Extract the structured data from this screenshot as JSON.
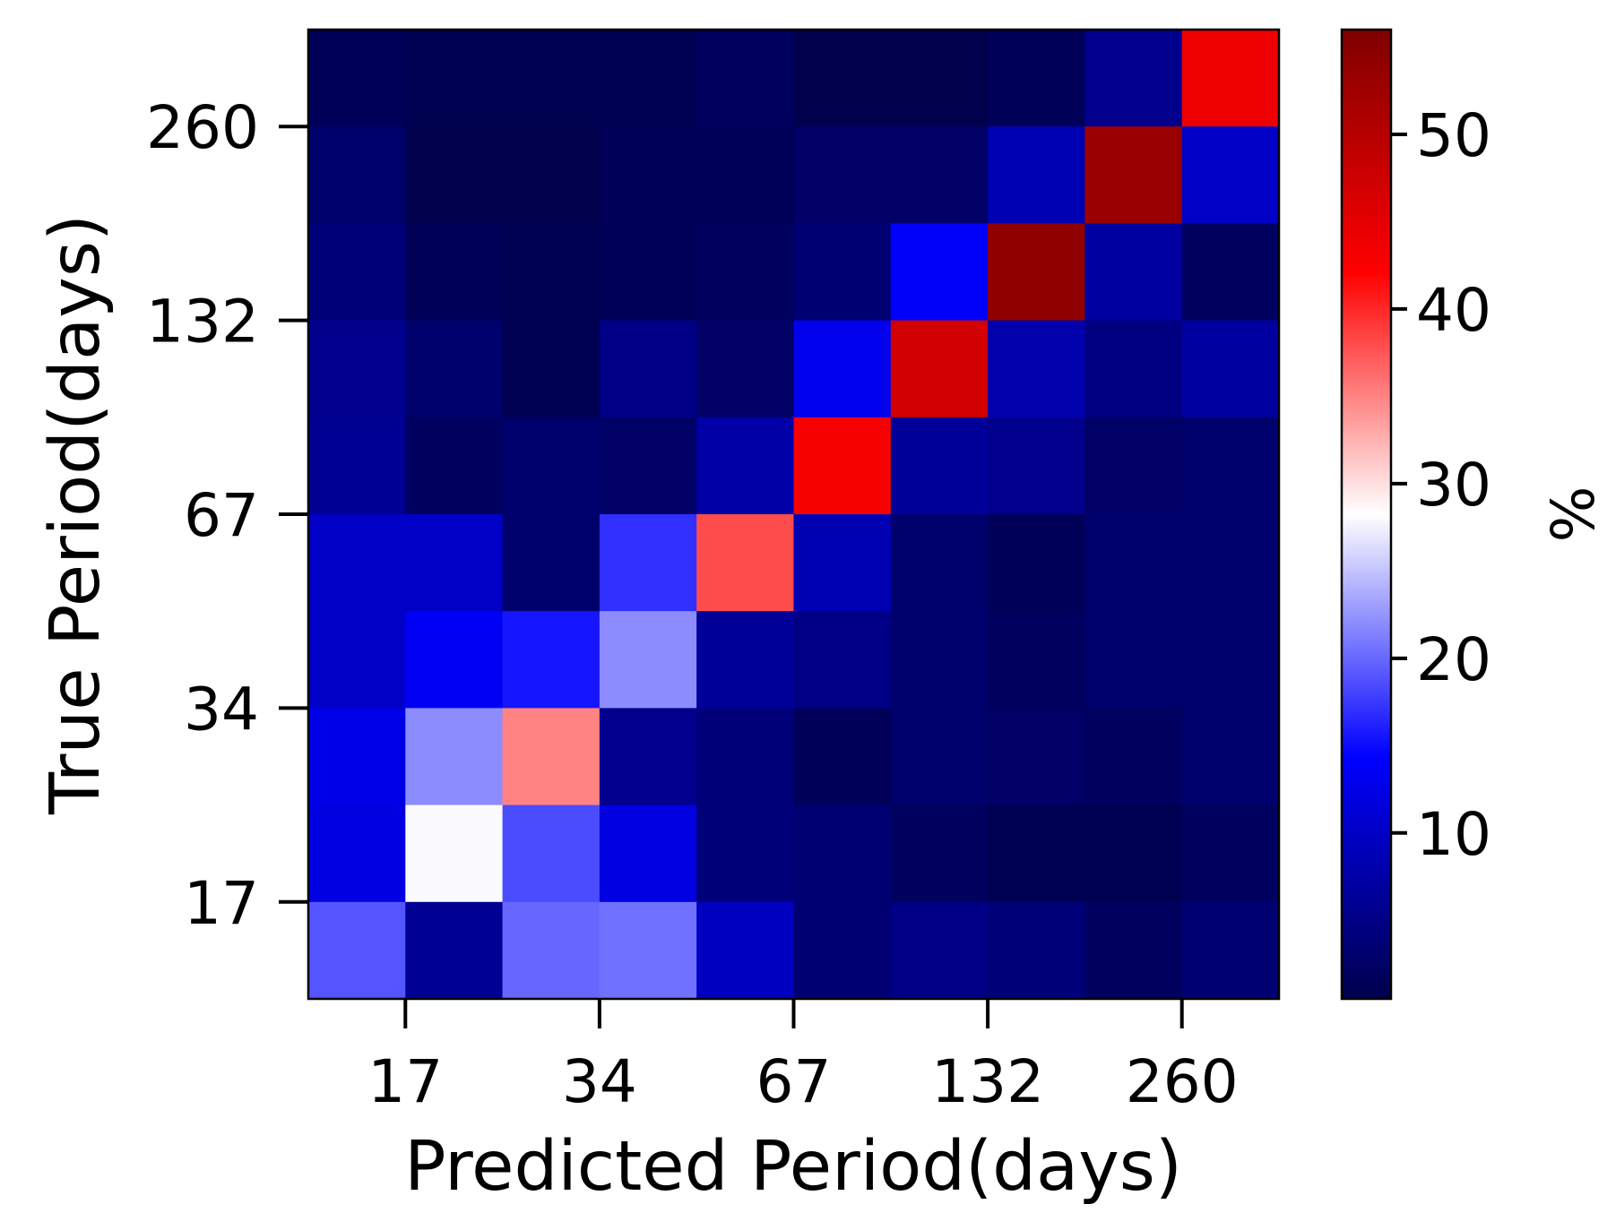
{
  "chart_data": {
    "type": "heatmap",
    "xlabel": "Predicted Period(days)",
    "ylabel": "True Period(days)",
    "x_ticks": [
      "17",
      "34",
      "67",
      "132",
      "260"
    ],
    "y_ticks": [
      "17",
      "34",
      "67",
      "132",
      "260"
    ],
    "x_bins": 10,
    "y_bins": 10,
    "colorbar": {
      "label": "%",
      "ticks": [
        "10",
        "20",
        "30",
        "40",
        "50"
      ],
      "range": [
        0.5,
        56
      ],
      "colormap": "seismic"
    },
    "rows_top_to_bottom": [
      [
        1.5,
        0.8,
        0.8,
        0.8,
        2.0,
        0.6,
        0.6,
        1.5,
        5.5,
        44.0
      ],
      [
        3.0,
        0.5,
        0.5,
        1.5,
        1.5,
        2.5,
        2.5,
        8.5,
        53.0,
        10.0
      ],
      [
        4.0,
        1.5,
        0.8,
        1.5,
        2.0,
        3.5,
        14.0,
        54.0,
        7.0,
        2.0
      ],
      [
        5.5,
        3.0,
        1.0,
        5.0,
        2.5,
        13.0,
        47.0,
        8.0,
        4.5,
        7.0
      ],
      [
        6.0,
        2.0,
        3.0,
        2.5,
        7.5,
        43.0,
        6.5,
        5.5,
        2.5,
        3.0
      ],
      [
        10.0,
        10.0,
        3.0,
        17.0,
        38.0,
        8.5,
        3.0,
        1.5,
        3.0,
        3.0
      ],
      [
        10.0,
        13.5,
        15.5,
        22.0,
        6.5,
        5.0,
        3.0,
        2.0,
        3.0,
        3.0
      ],
      [
        12.5,
        22.0,
        35.0,
        5.5,
        4.0,
        1.5,
        3.0,
        2.5,
        2.0,
        3.0
      ],
      [
        12.0,
        28.0,
        18.5,
        12.0,
        4.0,
        3.5,
        2.0,
        1.0,
        1.0,
        2.0
      ],
      [
        19.0,
        6.0,
        20.0,
        20.5,
        9.5,
        3.5,
        5.0,
        4.0,
        2.0,
        3.5
      ]
    ]
  }
}
